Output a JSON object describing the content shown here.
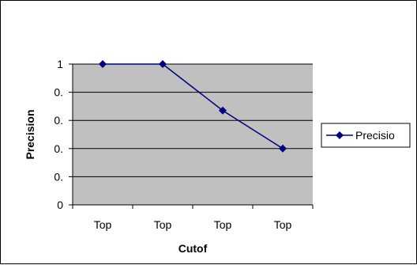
{
  "chart_data": {
    "type": "line",
    "xlabel": "Cutof",
    "ylabel": "Precision",
    "categories": [
      "Top",
      "Top",
      "Top",
      "Top"
    ],
    "ytick_labels": [
      "0",
      "0.",
      "0.",
      "0.",
      "0.",
      "1"
    ],
    "ylim": [
      0,
      1
    ],
    "grid": true,
    "legend_position": "right",
    "series": [
      {
        "name": "Precisio",
        "values": [
          1.0,
          1.0,
          0.67,
          0.4
        ]
      }
    ],
    "colors": {
      "plot_area": "#c0c0c0",
      "series_line": "#000080",
      "gridline": "#000000"
    }
  }
}
